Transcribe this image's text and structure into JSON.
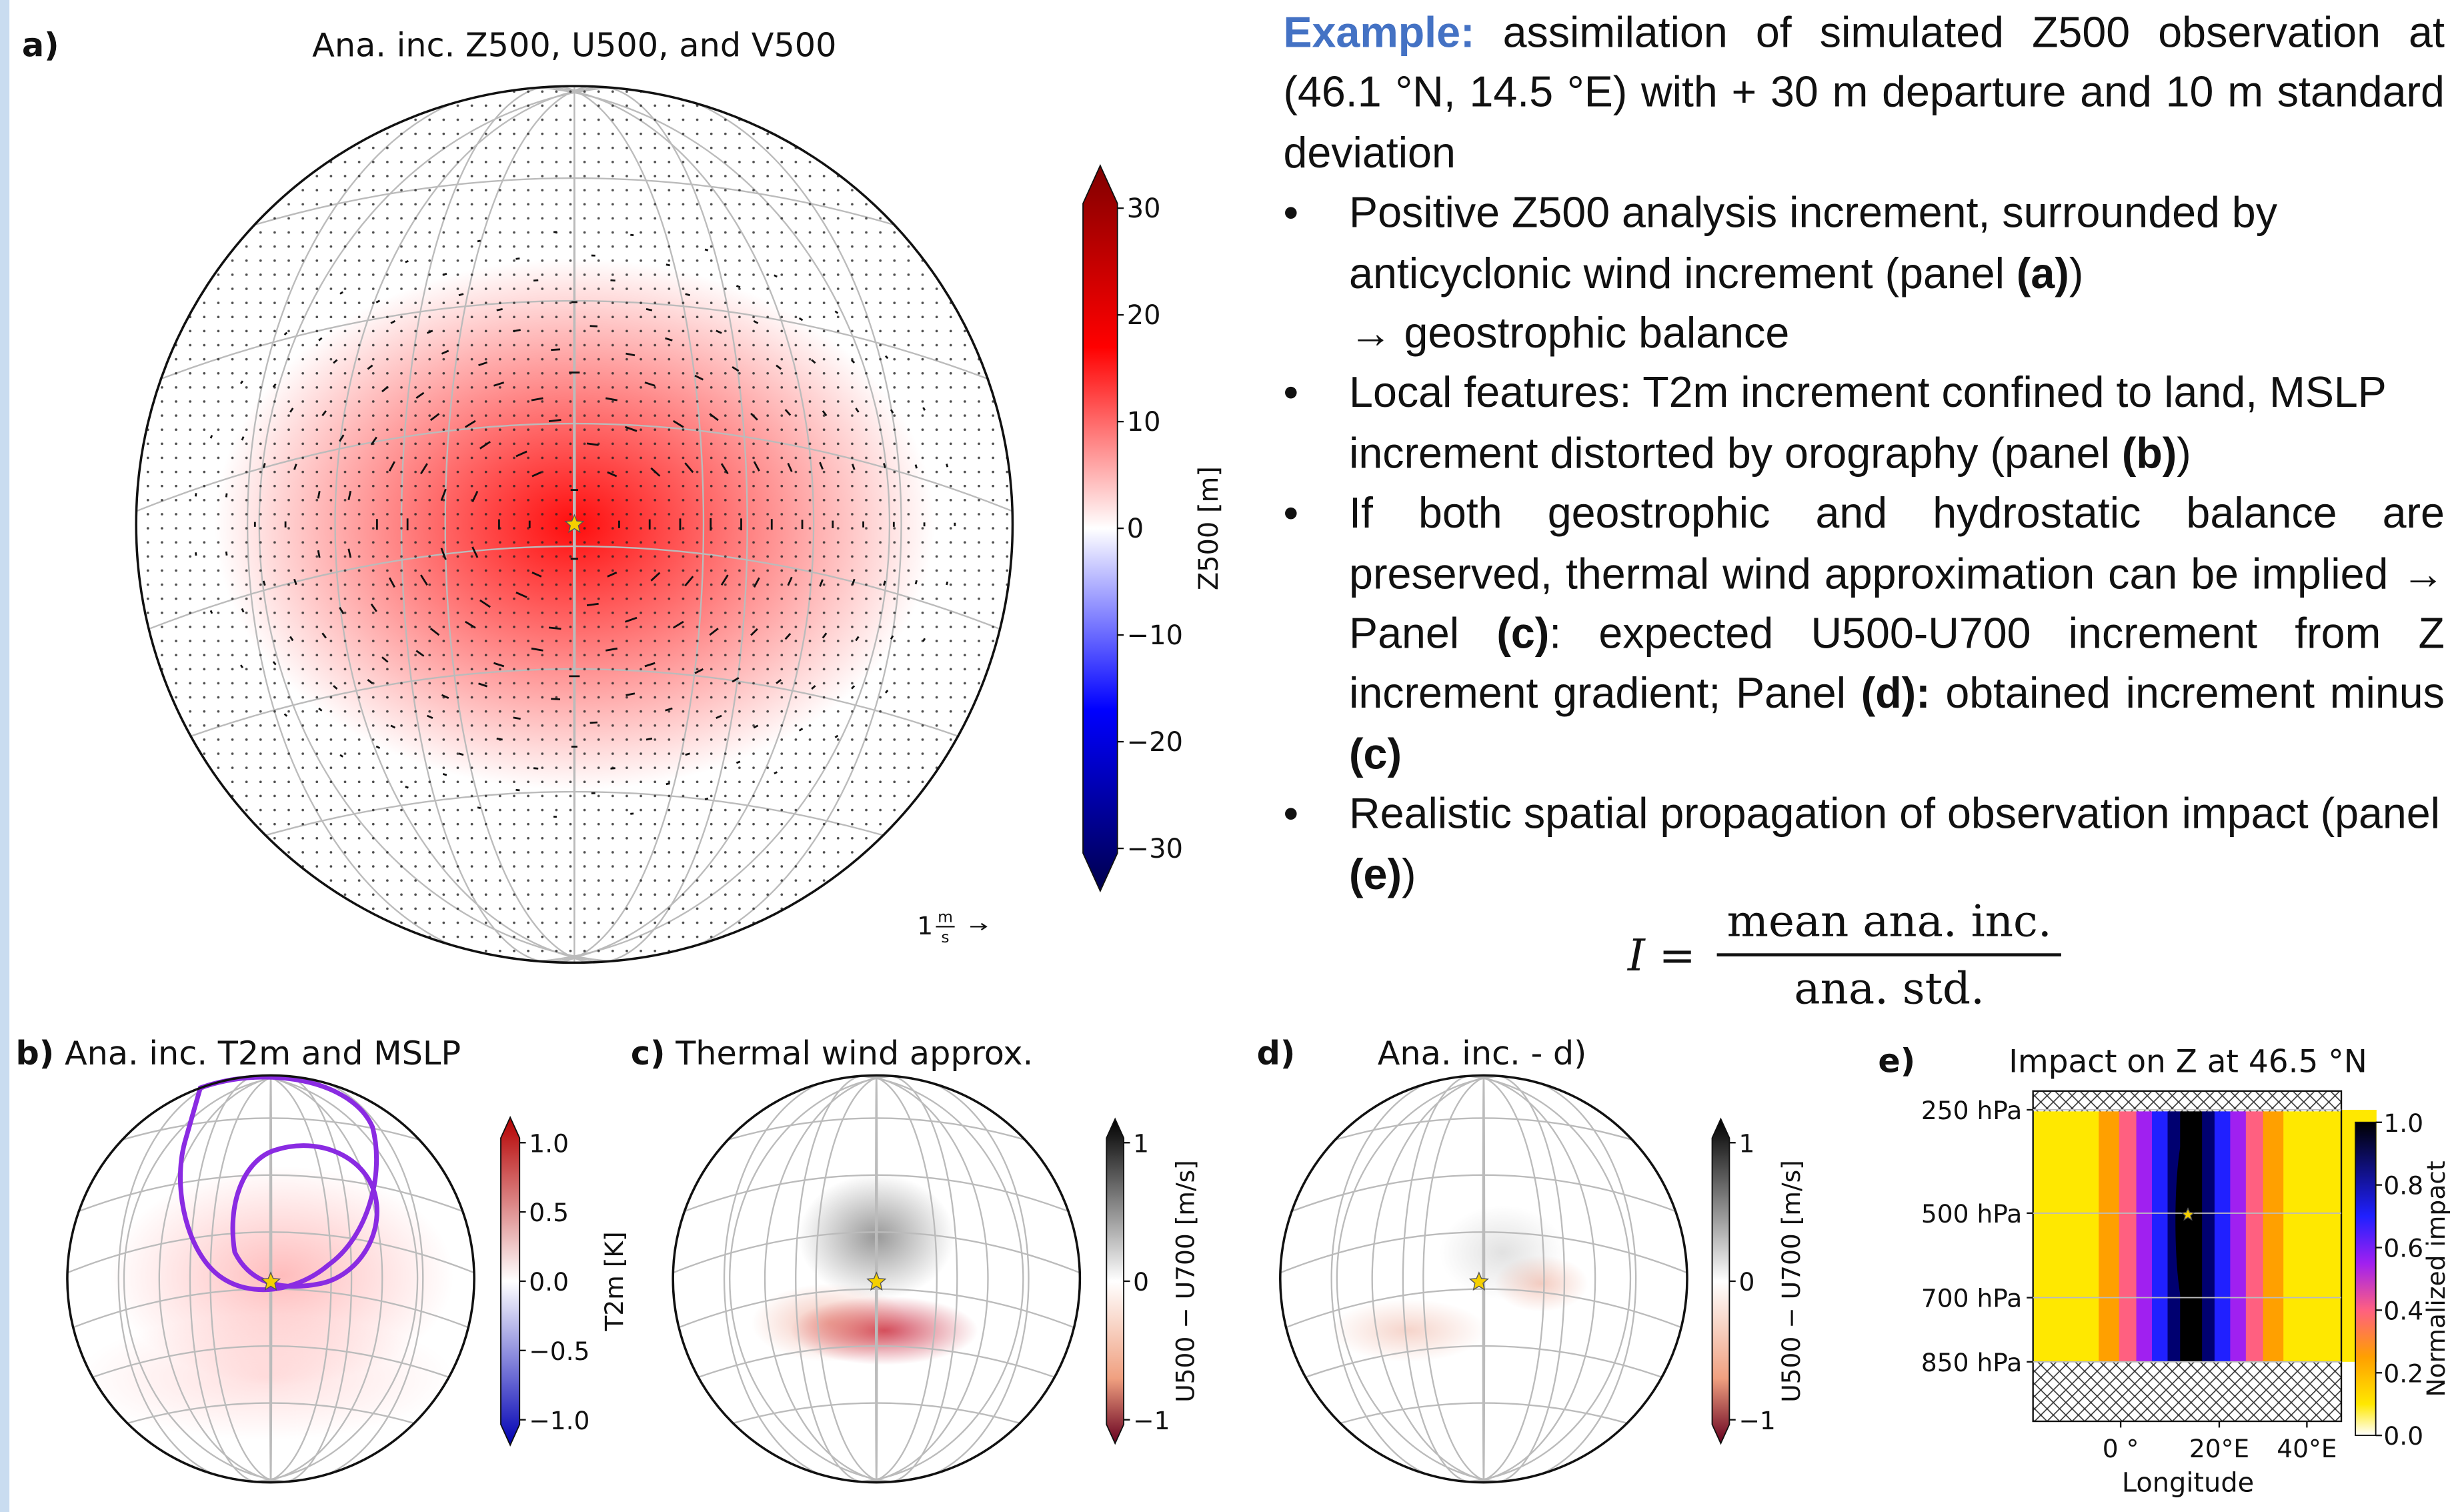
{
  "panels": [
    {
      "label": "a)",
      "title": "Ana. inc. Z500, U500, and V500",
      "colorbar": {
        "label": "Z500 [m]",
        "ticks": [
          "30",
          "20",
          "10",
          "0",
          "−10",
          "−20",
          "−30"
        ]
      },
      "key": {
        "value": "1",
        "numerator": "m",
        "denominator": "s"
      }
    },
    {
      "label": "b)",
      "title": "Ana. inc. T2m and MSLP",
      "colorbar": {
        "label": "T2m [K]",
        "ticks": [
          "1.0",
          "0.5",
          "0.0",
          "−0.5",
          "−1.0"
        ]
      }
    },
    {
      "label": "c)",
      "title": "Thermal wind approx.",
      "colorbar": {
        "label": "U500 − U700 [m/s]",
        "ticks": [
          "1",
          "0",
          "−1"
        ]
      }
    },
    {
      "label": "d)",
      "title": "Ana. inc. - d)",
      "colorbar": {
        "label": "U500 − U700 [m/s]",
        "ticks": [
          "1",
          "0",
          "−1"
        ]
      }
    },
    {
      "label": "e)",
      "title": "Impact on Z at 46.5 °N",
      "yticks": [
        "250 hPa",
        "500 hPa",
        "700 hPa",
        "850 hPa"
      ],
      "xticks": [
        "0 °",
        "20°E",
        "40°E"
      ],
      "xlabel": "Longitude",
      "colorbar": {
        "label": "Normalized impact",
        "ticks": [
          "1.0",
          "0.8",
          "0.6",
          "0.4",
          "0.2",
          "0.0"
        ]
      }
    }
  ],
  "text": {
    "intro": [
      "Example:",
      " assimilation of simulated Z500 observation at (46.1 °N, 14.5 °E) with + 30 m departure and 10 m standard deviation"
    ],
    "bullets": [
      [
        "Positive Z500 analysis increment, surrounded by anticyclonic wind increment (panel ",
        "(a)",
        ")",
        "→ geostrophic balance"
      ],
      [
        "Local features: T2m increment confined to land, MSLP increment distorted by orography (panel ",
        "(b)",
        ")"
      ],
      [
        "If both geostrophic and hydrostatic balance are preserved, thermal wind approximation can be implied → Panel ",
        "(c)",
        ": expected U500-U700 increment from Z increment gradient; Panel ",
        "(d):",
        " obtained increment minus ",
        "(c)"
      ],
      [
        "Realistic spatial propagation of observation impact (panel ",
        "(e)",
        ")"
      ]
    ]
  },
  "formula": {
    "lhs": "I =",
    "numerator": "mean ana. inc.",
    "denominator": "ana. std."
  }
}
